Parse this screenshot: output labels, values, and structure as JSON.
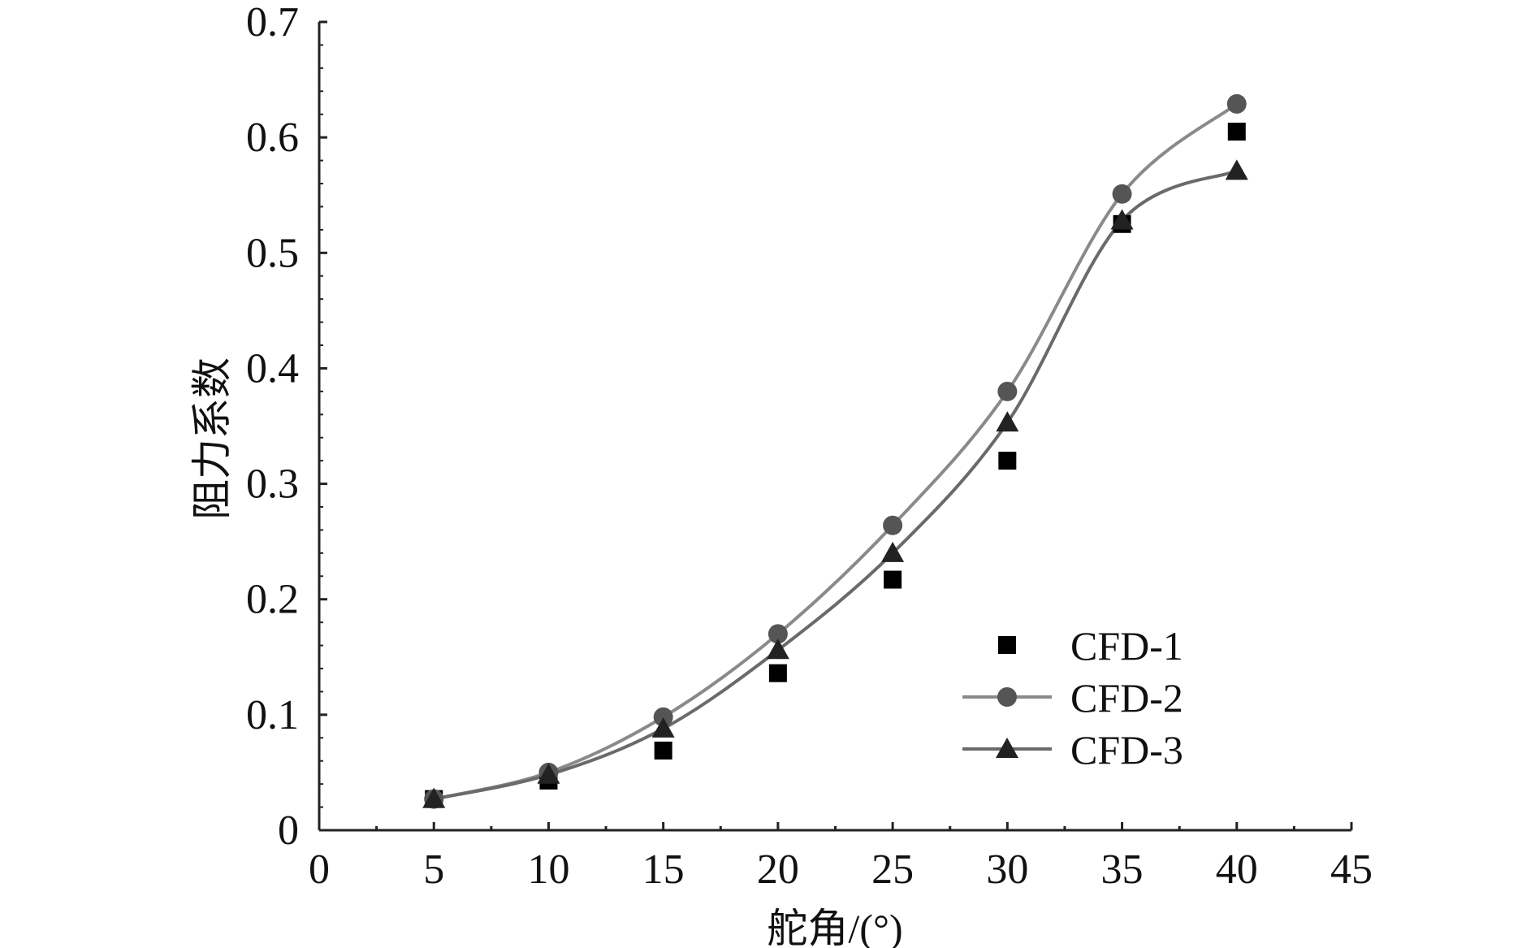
{
  "chart_data": {
    "type": "line",
    "title": "",
    "xlabel": "舵角/(°)",
    "ylabel": "阻力系数",
    "xlim": [
      0,
      45
    ],
    "ylim": [
      0,
      0.7
    ],
    "xticks": [
      "0",
      "5",
      "10",
      "15",
      "20",
      "25",
      "30",
      "35",
      "40",
      "45"
    ],
    "yticks": [
      "0",
      "0.1",
      "0.2",
      "0.3",
      "0.4",
      "0.5",
      "0.6",
      "0.7"
    ],
    "grid": false,
    "legend_position": "lower-right",
    "x": [
      5,
      10,
      15,
      20,
      25,
      30,
      35,
      40
    ],
    "series": [
      {
        "name": "CFD-1",
        "marker": "square",
        "line": false,
        "color": "#000000",
        "values": [
          0.027,
          0.043,
          0.069,
          0.136,
          0.217,
          0.32,
          0.525,
          0.605
        ]
      },
      {
        "name": "CFD-2",
        "marker": "circle",
        "line": true,
        "color": "#555555",
        "line_color": "#8a8a8a",
        "values": [
          0.027,
          0.05,
          0.098,
          0.17,
          0.264,
          0.38,
          0.551,
          0.629
        ]
      },
      {
        "name": "CFD-3",
        "marker": "triangle",
        "line": true,
        "color": "#222222",
        "line_color": "#6a6a6a",
        "values": [
          0.027,
          0.048,
          0.088,
          0.156,
          0.24,
          0.353,
          0.528,
          0.571
        ]
      }
    ]
  }
}
